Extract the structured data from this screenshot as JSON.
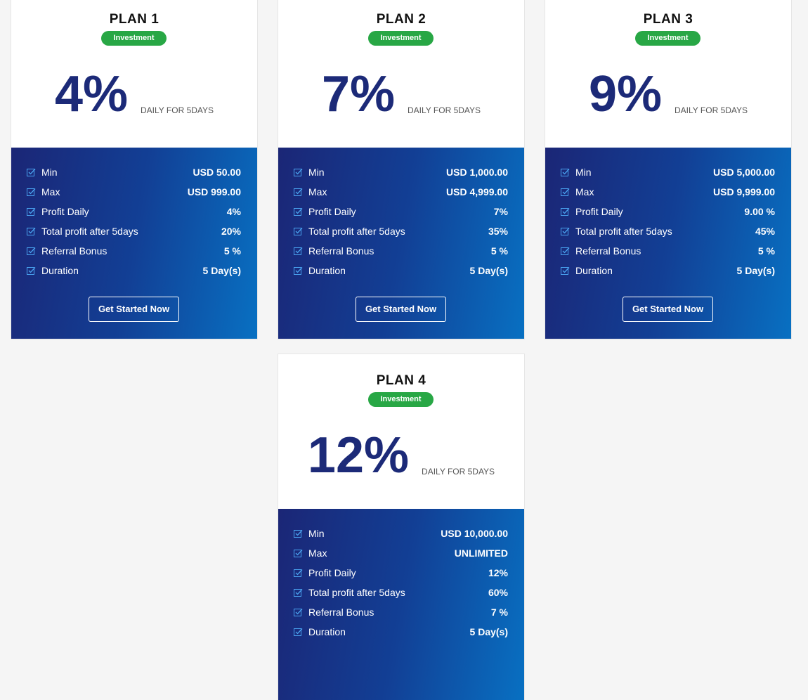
{
  "plans": [
    {
      "name": "PLAN 1",
      "badge": "Investment",
      "rate": "4%",
      "period": "DAILY FOR 5DAYS",
      "rows": [
        [
          "Min",
          "USD 50.00"
        ],
        [
          "Max",
          "USD 999.00"
        ],
        [
          "Profit Daily",
          "4%"
        ],
        [
          "Total profit after 5days",
          "20%"
        ],
        [
          "Referral Bonus",
          "5 %"
        ],
        [
          "Duration",
          "5 Day(s)"
        ]
      ],
      "button": "Get Started Now"
    },
    {
      "name": "PLAN 2",
      "badge": "Investment",
      "rate": "7%",
      "period": "DAILY FOR 5DAYS",
      "rows": [
        [
          "Min",
          "USD 1,000.00"
        ],
        [
          "Max",
          "USD 4,999.00"
        ],
        [
          "Profit Daily",
          "7%"
        ],
        [
          "Total profit after 5days",
          "35%"
        ],
        [
          "Referral Bonus",
          "5 %"
        ],
        [
          "Duration",
          "5 Day(s)"
        ]
      ],
      "button": "Get Started Now"
    },
    {
      "name": "PLAN 3",
      "badge": "Investment",
      "rate": "9%",
      "period": "DAILY FOR 5DAYS",
      "rows": [
        [
          "Min",
          "USD 5,000.00"
        ],
        [
          "Max",
          "USD 9,999.00"
        ],
        [
          "Profit Daily",
          "9.00 %"
        ],
        [
          "Total profit after 5days",
          "45%"
        ],
        [
          "Referral Bonus",
          "5 %"
        ],
        [
          "Duration",
          "5 Day(s)"
        ]
      ],
      "button": "Get Started Now"
    },
    {
      "name": "PLAN 4",
      "badge": "Investment",
      "rate": "12%",
      "period": "DAILY FOR 5DAYS",
      "rows": [
        [
          "Min",
          "USD 10,000.00"
        ],
        [
          "Max",
          "UNLIMITED"
        ],
        [
          "Profit Daily",
          "12%"
        ],
        [
          "Total profit after 5days",
          "60%"
        ],
        [
          "Referral Bonus",
          "7 %"
        ],
        [
          "Duration",
          "5 Day(s)"
        ]
      ]
    }
  ]
}
